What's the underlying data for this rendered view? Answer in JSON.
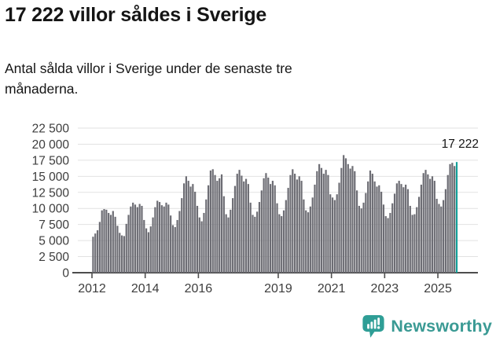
{
  "header": {
    "title": "17 222 villor såldes i Sverige",
    "subtitle": "Antal sålda villor i Sverige under de senaste tre\nmånaderna."
  },
  "chart_data": {
    "type": "bar",
    "title": "17 222 villor såldes i Sverige",
    "subtitle": "Antal sålda villor i Sverige under de senaste tre månaderna.",
    "frequency": "monthly (rolling 3-month total)",
    "x_start": "2012-01",
    "x_end": "2025-09",
    "values": [
      5600,
      6100,
      6600,
      7900,
      9700,
      9900,
      9800,
      9300,
      9000,
      9600,
      8700,
      7300,
      6200,
      5800,
      5700,
      7600,
      9000,
      10300,
      10900,
      10600,
      10200,
      10700,
      10400,
      8200,
      6900,
      6300,
      7200,
      8600,
      10200,
      11200,
      11000,
      10500,
      10300,
      10900,
      10600,
      8900,
      7400,
      7100,
      8200,
      9600,
      11600,
      13900,
      15000,
      14300,
      13400,
      13800,
      12600,
      10400,
      8600,
      8000,
      9300,
      11400,
      13600,
      15900,
      16100,
      15200,
      14300,
      14700,
      15300,
      11900,
      9100,
      8600,
      9800,
      11600,
      13500,
      15400,
      16000,
      15100,
      14200,
      14600,
      13800,
      10900,
      9000,
      8700,
      9500,
      11000,
      12800,
      14700,
      15500,
      14800,
      13800,
      14300,
      13600,
      10800,
      9100,
      8800,
      9700,
      11300,
      13200,
      15200,
      16100,
      15400,
      14500,
      15000,
      14300,
      11400,
      9700,
      9400,
      10300,
      11700,
      13700,
      15800,
      16900,
      16300,
      15400,
      16000,
      15200,
      12200,
      11700,
      11300,
      12200,
      14000,
      16300,
      18300,
      17800,
      16900,
      16200,
      16600,
      15800,
      12800,
      10400,
      10000,
      10900,
      12400,
      14200,
      15900,
      15400,
      14200,
      13400,
      13600,
      12600,
      10600,
      8800,
      8500,
      9300,
      10800,
      12300,
      13900,
      14300,
      13800,
      13300,
      13700,
      13000,
      10400,
      9000,
      9100,
      10200,
      11800,
      13700,
      15500,
      16000,
      15300,
      14600,
      15000,
      14300,
      11500,
      10700,
      10300,
      11300,
      13000,
      15200,
      16900,
      17100,
      16600,
      17222
    ],
    "highlight": {
      "position": "last",
      "value": 17222,
      "label": "17 222",
      "color": "#14a19a"
    },
    "bar_color": "#6d6d74",
    "grid_color": "#e2e2e2",
    "axis_color": "#4d4d4d",
    "tick_text_color": "#3d3d3d",
    "annotation_color": "#151515",
    "ylim": [
      0,
      22500
    ],
    "ytick_labels": [
      "0",
      "2 500",
      "5 000",
      "7 500",
      "10 000",
      "12 500",
      "15 000",
      "17 500",
      "20 000",
      "22 500"
    ],
    "xtick_labels": [
      "2012",
      "2014",
      "2016",
      "2019",
      "2021",
      "2023",
      "2025"
    ],
    "grid": "horizontal",
    "legend": "none"
  },
  "footer": {
    "brand": "Newsworthy",
    "brand_color": "#3a9a94",
    "icon_color": "#2f9e96"
  }
}
